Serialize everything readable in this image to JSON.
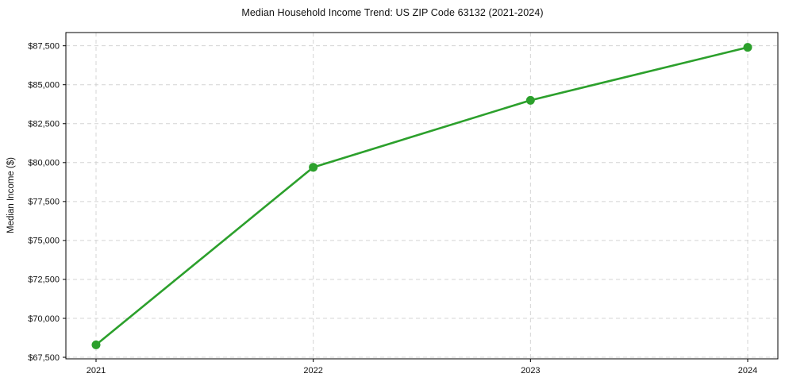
{
  "chart_data": {
    "type": "line",
    "title": "Median Household Income Trend: US ZIP Code 63132 (2021-2024)",
    "xlabel": "",
    "ylabel": "Median Income ($)",
    "categories": [
      "2021",
      "2022",
      "2023",
      "2024"
    ],
    "series": [
      {
        "name": "Median Household Income",
        "values": [
          68300,
          79700,
          84000,
          87400
        ]
      }
    ],
    "yticks": [
      67500,
      70000,
      72500,
      75000,
      77500,
      80000,
      82500,
      85000,
      87500
    ],
    "ytick_labels": [
      "$67,500",
      "$70,000",
      "$72,500",
      "$75,000",
      "$77,500",
      "$80,000",
      "$82,500",
      "$85,000",
      "$87,500"
    ],
    "ylim": [
      67400,
      88350
    ],
    "grid": true,
    "legend": "none",
    "line_color": "#2ca02c",
    "marker_color": "#2ca02c",
    "grid_color": "#d4d4d4",
    "axis_color": "#000000",
    "text_color": "#111111"
  }
}
